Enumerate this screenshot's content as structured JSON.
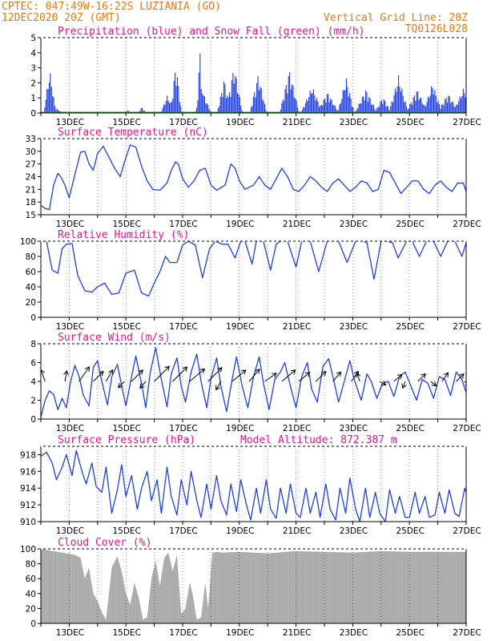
{
  "header": {
    "left1": "CPTEC:   047:49W-16:22S  LUZIANIA (GO)",
    "left2": "12DEC2020 20Z (GMT)",
    "right1": "Vertical Grid Line: 20Z",
    "right2": "TQ0126L028"
  },
  "colors": {
    "header": "#e07b14",
    "title": "#e0178f",
    "line": "#1f3fe0",
    "precip": "#1f3fe0",
    "snow": "#1fa01f",
    "cloud": "#a9a9a9",
    "arrow": "#000000"
  },
  "chart_data": [
    {
      "type": "bar",
      "title": "Precipitation (blue) and Snow Fall (green) (mm/h)",
      "ylim": [
        0,
        5
      ],
      "yticks": [
        "0",
        "1",
        "2",
        "3",
        "4",
        "5"
      ],
      "xticks": [
        "13DEC",
        "15DEC",
        "17DEC",
        "19DEC",
        "21DEC",
        "23DEC",
        "25DEC",
        "27DEC"
      ],
      "snow": 0,
      "events": [
        {
          "day": 0.3,
          "peak": 2.9,
          "width": 0.22
        },
        {
          "day": 0.55,
          "peak": 0.3,
          "width": 0.2
        },
        {
          "day": 3.05,
          "peak": 0.2,
          "width": 0.1
        },
        {
          "day": 3.55,
          "peak": 0.4,
          "width": 0.15
        },
        {
          "day": 4.45,
          "peak": 1.2,
          "width": 0.25
        },
        {
          "day": 4.75,
          "peak": 3.4,
          "width": 0.2
        },
        {
          "day": 5.6,
          "peak": 4.2,
          "width": 0.12
        },
        {
          "day": 5.7,
          "peak": 1.4,
          "width": 0.3
        },
        {
          "day": 6.45,
          "peak": 2.3,
          "width": 0.25
        },
        {
          "day": 6.8,
          "peak": 3.2,
          "width": 0.3
        },
        {
          "day": 7.65,
          "peak": 2.6,
          "width": 0.3
        },
        {
          "day": 8.75,
          "peak": 2.9,
          "width": 0.35
        },
        {
          "day": 9.55,
          "peak": 1.8,
          "width": 0.4
        },
        {
          "day": 10.1,
          "peak": 1.4,
          "width": 0.4
        },
        {
          "day": 10.75,
          "peak": 2.4,
          "width": 0.3
        },
        {
          "day": 11.45,
          "peak": 1.6,
          "width": 0.4
        },
        {
          "day": 12.05,
          "peak": 1.1,
          "width": 0.3
        },
        {
          "day": 12.6,
          "peak": 2.5,
          "width": 0.35
        },
        {
          "day": 13.25,
          "peak": 1.6,
          "width": 0.4
        },
        {
          "day": 13.8,
          "peak": 2.0,
          "width": 0.35
        },
        {
          "day": 14.35,
          "peak": 1.3,
          "width": 0.4
        },
        {
          "day": 14.9,
          "peak": 1.7,
          "width": 0.4
        }
      ]
    },
    {
      "type": "line",
      "title": "Surface Temperature (nC)",
      "ylim": [
        15,
        33
      ],
      "yticks": [
        "15",
        "18",
        "21",
        "24",
        "27",
        "30",
        "33"
      ],
      "xticks": [
        "13DEC",
        "15DEC",
        "17DEC",
        "19DEC",
        "21DEC",
        "23DEC",
        "25DEC",
        "27DEC"
      ],
      "x_days": [
        0,
        0.15,
        0.3,
        0.45,
        0.6,
        0.7,
        0.85,
        1.0,
        1.2,
        1.4,
        1.55,
        1.7,
        1.85,
        2.0,
        2.2,
        2.45,
        2.6,
        2.8,
        2.95,
        3.15,
        3.35,
        3.55,
        3.75,
        3.95,
        4.2,
        4.45,
        4.6,
        4.75,
        4.85,
        5.0,
        5.2,
        5.4,
        5.6,
        5.8,
        6.0,
        6.2,
        6.5,
        6.7,
        6.85,
        7.0,
        7.2,
        7.5,
        7.7,
        7.9,
        8.1,
        8.3,
        8.5,
        8.7,
        8.9,
        9.1,
        9.3,
        9.5,
        9.7,
        9.9,
        10.1,
        10.3,
        10.5,
        10.7,
        10.9,
        11.1,
        11.3,
        11.5,
        11.7,
        11.9,
        12.1,
        12.3,
        12.5,
        12.7,
        12.9,
        13.1,
        13.3,
        13.5,
        13.7,
        13.9,
        14.1,
        14.3,
        14.5,
        14.7,
        14.9,
        15.0
      ],
      "values": [
        17.2,
        16.5,
        16.2,
        22.0,
        24.8,
        24.0,
        22.0,
        19.0,
        24.5,
        29.8,
        30.0,
        27.0,
        25.5,
        29.5,
        31.2,
        28.0,
        26.0,
        24.0,
        27.5,
        31.5,
        31.0,
        26.5,
        23.0,
        21.0,
        20.8,
        22.5,
        25.5,
        27.5,
        27.0,
        23.5,
        21.5,
        23.0,
        25.5,
        26.0,
        22.0,
        20.8,
        22.0,
        27.0,
        26.0,
        23.0,
        21.0,
        22.0,
        24.0,
        22.0,
        21.0,
        23.5,
        26.0,
        24.0,
        21.0,
        20.5,
        22.0,
        24.0,
        23.0,
        21.5,
        20.5,
        22.5,
        23.5,
        22.0,
        20.5,
        21.5,
        23.0,
        22.5,
        20.5,
        21.0,
        25.5,
        25.0,
        22.5,
        20.0,
        21.5,
        23.0,
        23.0,
        21.0,
        20.0,
        22.0,
        23.0,
        21.5,
        20.5,
        22.5,
        22.5,
        20.5
      ]
    },
    {
      "type": "line",
      "title": "Relative Humidity (%)",
      "ylim": [
        0,
        100
      ],
      "yticks": [
        "0",
        "20",
        "40",
        "60",
        "80",
        "100"
      ],
      "xticks": [
        "13DEC",
        "15DEC",
        "17DEC",
        "19DEC",
        "21DEC",
        "23DEC",
        "25DEC",
        "27DEC"
      ],
      "x_days": [
        0,
        0.2,
        0.4,
        0.6,
        0.75,
        0.9,
        1.1,
        1.3,
        1.55,
        1.8,
        2.0,
        2.25,
        2.5,
        2.75,
        3.0,
        3.3,
        3.55,
        3.8,
        4.0,
        4.2,
        4.4,
        4.55,
        4.8,
        5.0,
        5.2,
        5.45,
        5.7,
        5.95,
        6.15,
        6.4,
        6.6,
        6.85,
        7.05,
        7.2,
        7.45,
        7.6,
        7.85,
        8.1,
        8.3,
        8.45,
        8.7,
        9.0,
        9.2,
        9.5,
        9.8,
        10.1,
        10.35,
        10.5,
        10.8,
        11.1,
        11.35,
        11.5,
        11.75,
        12.0,
        12.2,
        12.4,
        12.6,
        12.9,
        13.1,
        13.35,
        13.6,
        13.85,
        14.1,
        14.35,
        14.6,
        14.85,
        15.0
      ],
      "values": [
        100,
        100,
        62,
        58,
        90,
        96,
        97,
        55,
        35,
        33,
        40,
        45,
        30,
        32,
        58,
        62,
        32,
        28,
        45,
        60,
        80,
        72,
        72,
        95,
        100,
        95,
        52,
        90,
        100,
        96,
        96,
        78,
        100,
        100,
        70,
        100,
        100,
        62,
        96,
        100,
        100,
        66,
        100,
        100,
        60,
        100,
        100,
        100,
        72,
        100,
        100,
        98,
        50,
        100,
        100,
        98,
        78,
        100,
        100,
        80,
        100,
        100,
        80,
        100,
        100,
        80,
        98
      ]
    },
    {
      "type": "line",
      "title": "Surface Wind (m/s)",
      "ylim": [
        0,
        8
      ],
      "yticks": [
        "0",
        "2",
        "4",
        "6",
        "8"
      ],
      "xticks": [
        "13DEC",
        "15DEC",
        "17DEC",
        "19DEC",
        "21DEC",
        "23DEC",
        "25DEC",
        "27DEC"
      ],
      "x_days": [
        0,
        0.15,
        0.3,
        0.45,
        0.6,
        0.75,
        0.9,
        1.05,
        1.2,
        1.35,
        1.5,
        1.7,
        1.85,
        2.0,
        2.15,
        2.35,
        2.5,
        2.7,
        2.85,
        3.0,
        3.2,
        3.35,
        3.55,
        3.7,
        3.85,
        4.05,
        4.25,
        4.45,
        4.6,
        4.8,
        4.95,
        5.1,
        5.3,
        5.5,
        5.65,
        5.85,
        6.0,
        6.2,
        6.35,
        6.55,
        6.75,
        6.9,
        7.1,
        7.3,
        7.5,
        7.7,
        7.85,
        8.05,
        8.25,
        8.45,
        8.6,
        8.8,
        9.0,
        9.2,
        9.4,
        9.55,
        9.75,
        9.95,
        10.15,
        10.3,
        10.5,
        10.7,
        10.9,
        11.05,
        11.3,
        11.5,
        11.65,
        11.85,
        12.05,
        12.25,
        12.45,
        12.65,
        12.85,
        13.05,
        13.25,
        13.45,
        13.65,
        13.85,
        14.05,
        14.25,
        14.45,
        14.65,
        14.85,
        15.0
      ],
      "values": [
        0.2,
        2.0,
        3.0,
        2.6,
        1.0,
        2.2,
        1.2,
        4.0,
        5.7,
        4.5,
        2.5,
        1.4,
        5.5,
        6.2,
        4.0,
        1.5,
        4.5,
        5.8,
        3.5,
        1.4,
        4.5,
        6.7,
        3.8,
        1.2,
        4.8,
        7.6,
        4.2,
        1.3,
        4.8,
        6.5,
        3.5,
        1.8,
        5.0,
        6.9,
        4.0,
        1.2,
        4.3,
        6.5,
        3.5,
        0.8,
        4.3,
        6.6,
        3.5,
        1.2,
        4.5,
        6.6,
        3.8,
        1.0,
        4.2,
        5.0,
        6.0,
        3.5,
        1.2,
        4.5,
        6.0,
        3.2,
        1.8,
        5.6,
        6.4,
        4.5,
        1.8,
        4.0,
        6.2,
        4.2,
        2.0,
        4.8,
        4.0,
        2.2,
        3.8,
        4.0,
        2.4,
        4.5,
        5.0,
        3.5,
        2.0,
        4.2,
        3.8,
        2.2,
        4.5,
        4.2,
        2.5,
        5.0,
        4.2,
        2.8
      ]
    },
    {
      "type": "line",
      "title": "Surface Pressure (hPa)",
      "annotation": "Model Altitude: 872.387 m",
      "ylim": [
        910,
        919
      ],
      "yticks": [
        "910",
        "912",
        "914",
        "916",
        "918"
      ],
      "xticks": [
        "13DEC",
        "15DEC",
        "17DEC",
        "19DEC",
        "21DEC",
        "23DEC",
        "25DEC",
        "27DEC"
      ],
      "x_days": [
        0,
        0.2,
        0.4,
        0.55,
        0.75,
        0.9,
        1.1,
        1.25,
        1.45,
        1.6,
        1.8,
        1.95,
        2.15,
        2.3,
        2.5,
        2.7,
        2.85,
        3.0,
        3.2,
        3.4,
        3.55,
        3.75,
        3.9,
        4.1,
        4.25,
        4.45,
        4.6,
        4.8,
        4.95,
        5.15,
        5.3,
        5.5,
        5.65,
        5.85,
        6.0,
        6.2,
        6.35,
        6.55,
        6.7,
        6.9,
        7.05,
        7.25,
        7.4,
        7.6,
        7.75,
        7.95,
        8.1,
        8.3,
        8.45,
        8.65,
        8.8,
        9.0,
        9.15,
        9.35,
        9.5,
        9.7,
        9.85,
        10.05,
        10.2,
        10.4,
        10.55,
        10.75,
        10.9,
        11.1,
        11.25,
        11.45,
        11.6,
        11.8,
        11.95,
        12.15,
        12.3,
        12.5,
        12.65,
        12.85,
        13.0,
        13.2,
        13.35,
        13.55,
        13.7,
        13.9,
        14.05,
        14.25,
        14.4,
        14.6,
        14.75,
        14.95,
        15.0
      ],
      "values": [
        917.8,
        918.3,
        917.0,
        915.0,
        916.5,
        918.0,
        915.5,
        918.5,
        916.0,
        914.5,
        917.0,
        914.2,
        913.5,
        916.5,
        911.0,
        913.8,
        916.8,
        913.0,
        915.5,
        911.5,
        914.0,
        916.0,
        912.5,
        915.0,
        911.0,
        916.5,
        913.0,
        910.8,
        915.0,
        912.0,
        916.0,
        912.5,
        910.5,
        914.5,
        911.5,
        915.5,
        912.5,
        910.8,
        914.5,
        911.2,
        915.0,
        912.0,
        910.2,
        914.0,
        911.0,
        915.0,
        911.5,
        910.4,
        914.0,
        911.0,
        914.5,
        911.0,
        910.5,
        914.0,
        911.0,
        913.5,
        910.5,
        914.5,
        911.5,
        910.2,
        914.0,
        911.0,
        915.2,
        911.5,
        910.0,
        914.0,
        910.5,
        913.5,
        911.0,
        910.0,
        913.8,
        911.0,
        913.0,
        910.5,
        910.5,
        913.5,
        911.0,
        913.0,
        910.5,
        910.8,
        913.5,
        911.0,
        913.8,
        911.0,
        910.6,
        914.0,
        913.5
      ]
    },
    {
      "type": "area",
      "title": "Cloud Cover (%)",
      "ylim": [
        0,
        100
      ],
      "yticks": [
        "0",
        "20",
        "40",
        "60",
        "80",
        "100"
      ],
      "xticks": [
        "13DEC",
        "15DEC",
        "17DEC",
        "19DEC",
        "21DEC",
        "23DEC",
        "25DEC",
        "27DEC"
      ],
      "x_days": [
        0,
        0.3,
        0.6,
        0.9,
        1.2,
        1.4,
        1.55,
        1.7,
        1.85,
        2.0,
        2.15,
        2.3,
        2.5,
        2.7,
        2.85,
        3.0,
        3.15,
        3.3,
        3.45,
        3.6,
        3.75,
        3.9,
        4.05,
        4.2,
        4.35,
        4.5,
        4.65,
        4.8,
        4.95,
        5.1,
        5.25,
        5.35,
        5.5,
        5.65,
        5.8,
        5.9,
        6.05,
        6.2,
        6.4,
        7.0,
        8.0,
        9.0,
        10.0,
        11.0,
        12.0,
        13.0,
        14.0,
        15.0
      ],
      "values": [
        100,
        98,
        96,
        94,
        92,
        88,
        60,
        75,
        40,
        30,
        15,
        5,
        75,
        90,
        70,
        40,
        25,
        55,
        35,
        5,
        8,
        60,
        85,
        50,
        88,
        95,
        70,
        92,
        12,
        20,
        55,
        40,
        5,
        8,
        55,
        20,
        95,
        96,
        95,
        96,
        94,
        97,
        96,
        95,
        97,
        96,
        96,
        96
      ]
    }
  ],
  "wind_arrows": [
    {
      "day": 0.15,
      "dir": 160,
      "len": 1.4
    },
    {
      "day": 0.85,
      "dir": 190,
      "len": 1.2
    },
    {
      "day": 1.35,
      "dir": 215,
      "len": 2.0
    },
    {
      "day": 1.85,
      "dir": 225,
      "len": 1.6
    },
    {
      "day": 2.3,
      "dir": 210,
      "len": 1.5
    },
    {
      "day": 2.95,
      "dir": 45,
      "len": 1.0
    },
    {
      "day": 3.2,
      "dir": 225,
      "len": 1.8
    },
    {
      "day": 3.7,
      "dir": 40,
      "len": 1.0
    },
    {
      "day": 4.0,
      "dir": 225,
      "len": 2.4
    },
    {
      "day": 4.65,
      "dir": 225,
      "len": 2.3
    },
    {
      "day": 5.25,
      "dir": 230,
      "len": 2.2
    },
    {
      "day": 5.9,
      "dir": 225,
      "len": 2.2
    },
    {
      "day": 6.35,
      "dir": 30,
      "len": 1.1
    },
    {
      "day": 6.75,
      "dir": 230,
      "len": 2.0
    },
    {
      "day": 7.35,
      "dir": 220,
      "len": 1.8
    },
    {
      "day": 7.9,
      "dir": 235,
      "len": 1.6
    },
    {
      "day": 8.5,
      "dir": 230,
      "len": 2.0
    },
    {
      "day": 9.1,
      "dir": 230,
      "len": 1.6
    },
    {
      "day": 9.7,
      "dir": 225,
      "len": 1.6
    },
    {
      "day": 10.3,
      "dir": 220,
      "len": 1.4
    },
    {
      "day": 10.95,
      "dir": 215,
      "len": 1.4
    },
    {
      "day": 11.25,
      "dir": 160,
      "len": 1.0
    },
    {
      "day": 11.95,
      "dir": 300,
      "len": 0.8
    },
    {
      "day": 12.45,
      "dir": 230,
      "len": 1.2
    },
    {
      "day": 12.85,
      "dir": 20,
      "len": 0.8
    },
    {
      "day": 13.3,
      "dir": 225,
      "len": 1.2
    },
    {
      "day": 13.75,
      "dir": 310,
      "len": 0.8
    },
    {
      "day": 14.15,
      "dir": 215,
      "len": 1.2
    },
    {
      "day": 14.65,
      "dir": 225,
      "len": 1.2
    },
    {
      "day": 14.95,
      "dir": 315,
      "len": 0.8
    }
  ]
}
